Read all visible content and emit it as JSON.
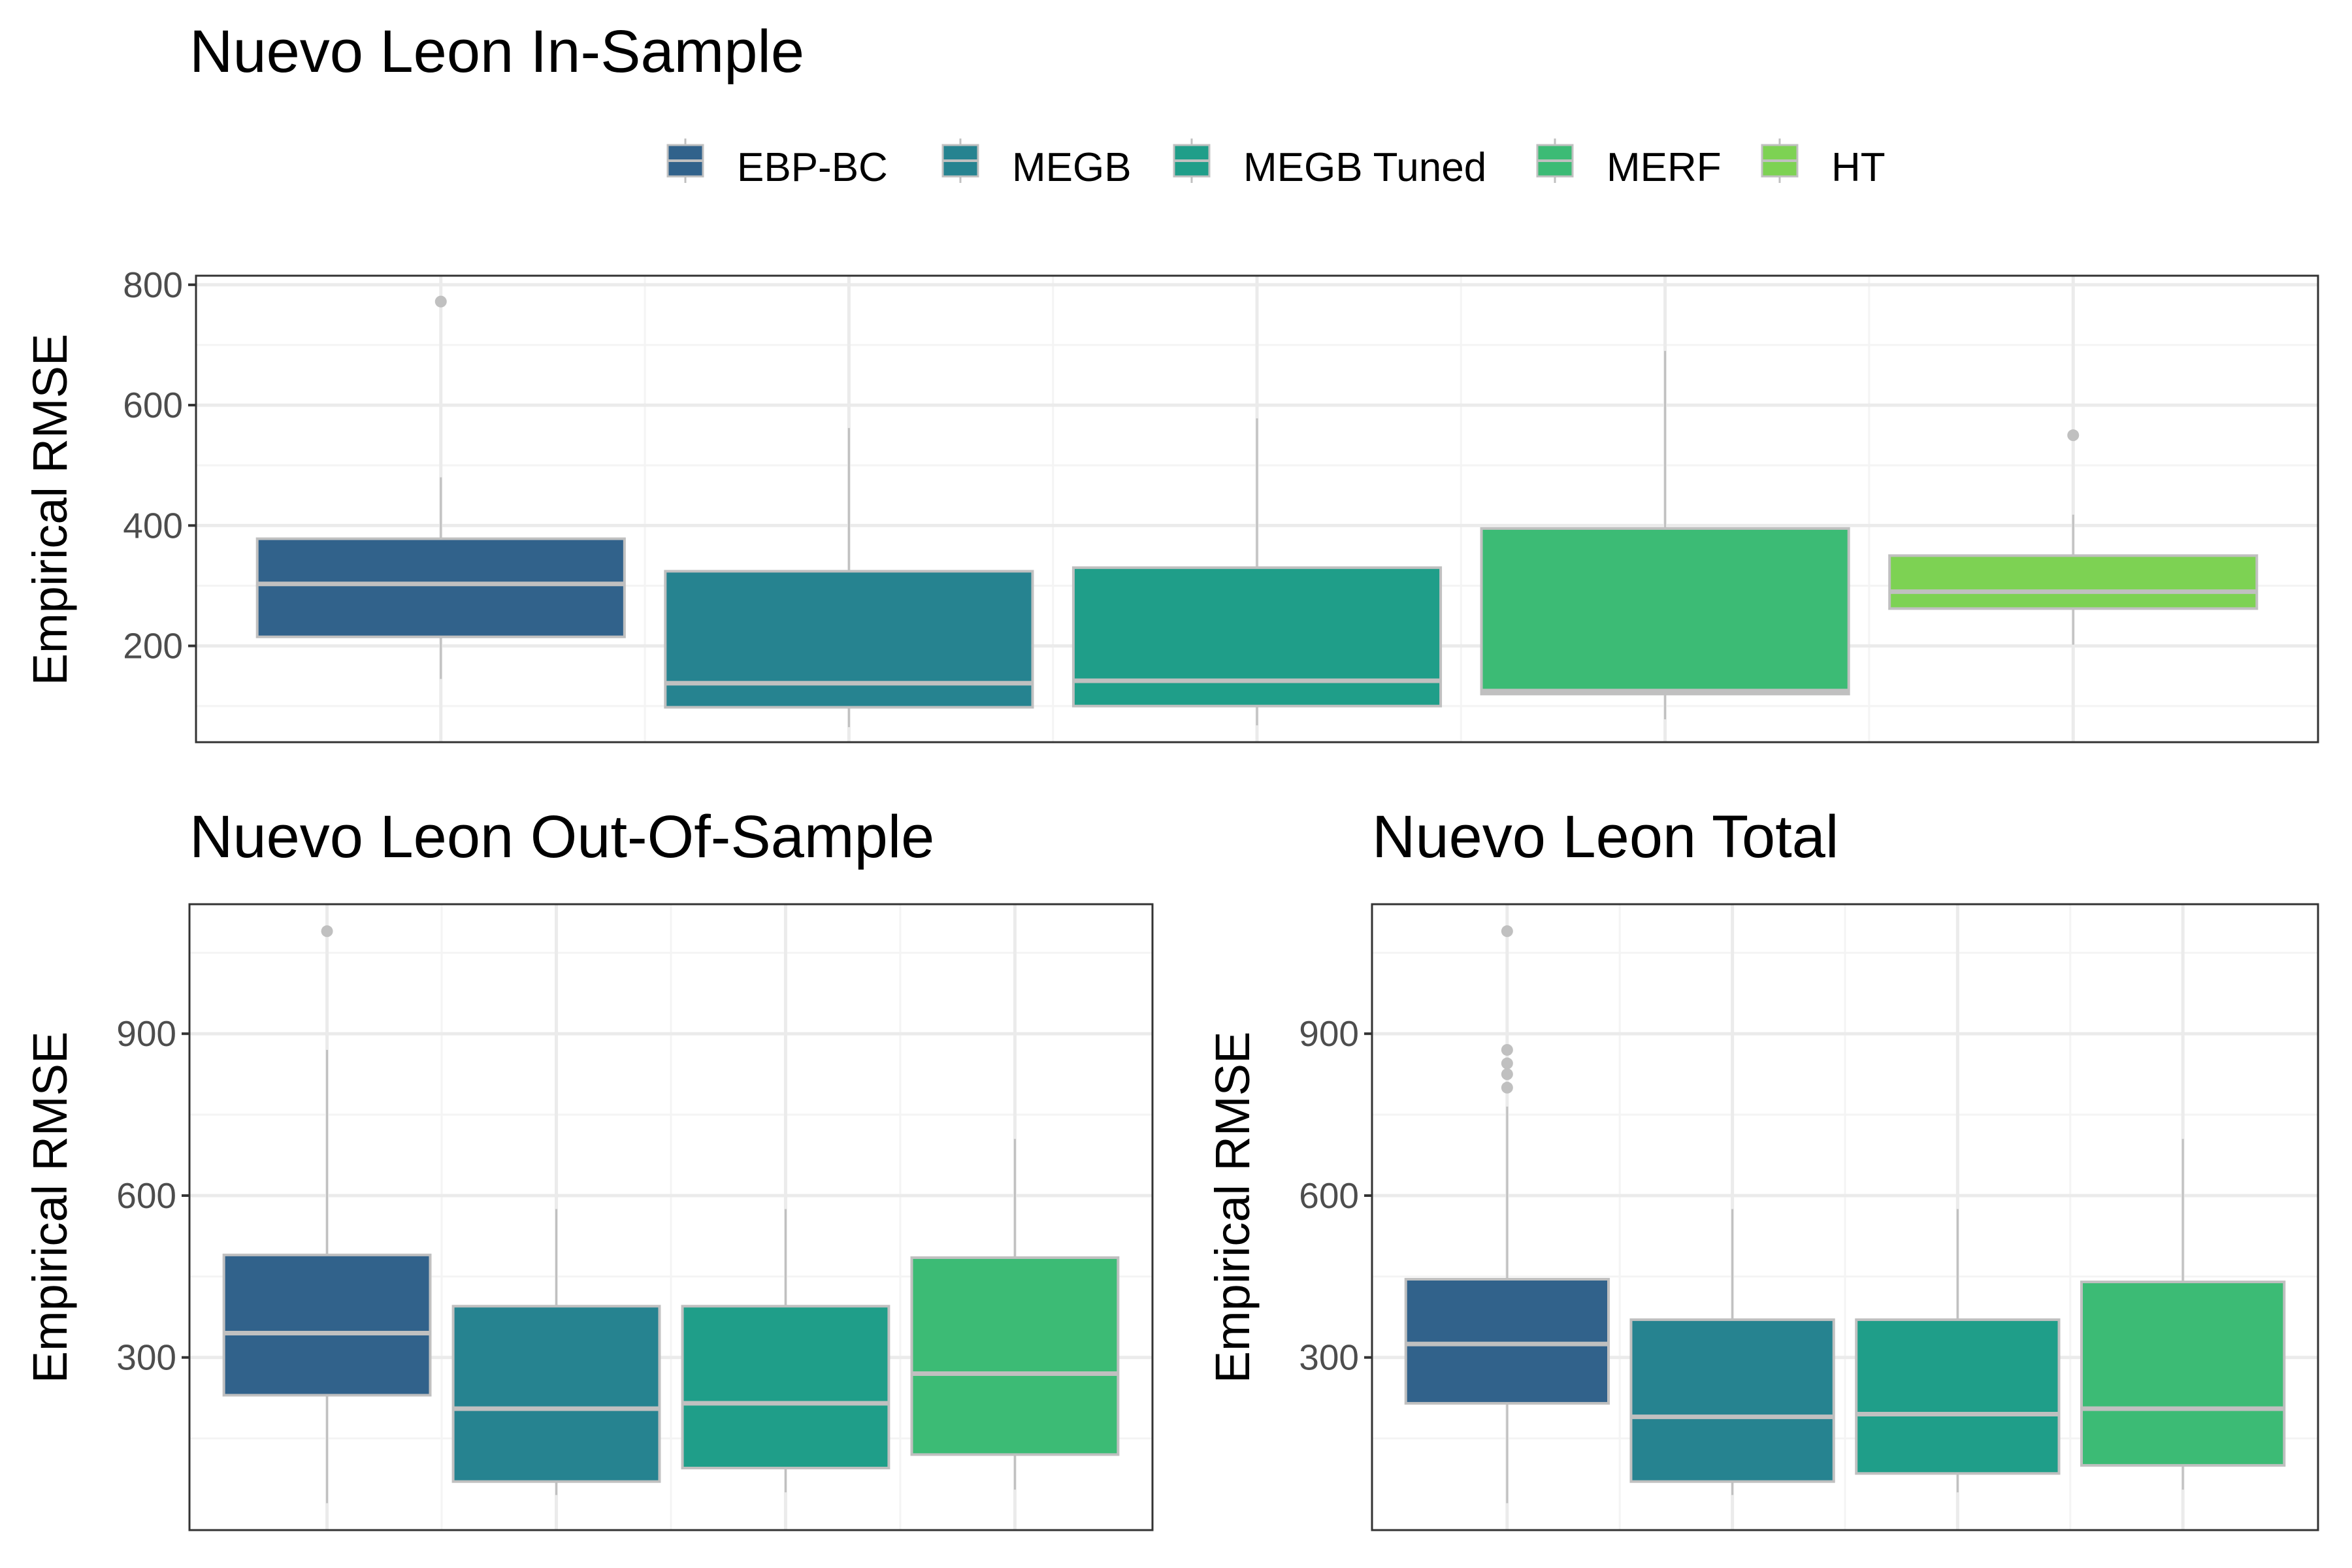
{
  "chart_data": [
    {
      "type": "box",
      "title": "Nuevo Leon In-Sample",
      "xlabel": "",
      "ylabel": "Empirical RMSE",
      "ylim": [
        40,
        815
      ],
      "yticks": [
        200,
        400,
        600,
        800
      ],
      "grid": true,
      "series": [
        {
          "name": "EBP-BC",
          "min": 145,
          "q1": 215,
          "median": 303,
          "q3": 378,
          "max": 480,
          "outliers": [
            772
          ]
        },
        {
          "name": "MEGB",
          "min": 65,
          "q1": 98,
          "median": 138,
          "q3": 324,
          "max": 562,
          "outliers": []
        },
        {
          "name": "MEGB Tuned",
          "min": 68,
          "q1": 100,
          "median": 142,
          "q3": 330,
          "max": 578,
          "outliers": []
        },
        {
          "name": "MERF",
          "min": 78,
          "q1": 120,
          "median": 125,
          "q3": 395,
          "max": 690,
          "outliers": []
        },
        {
          "name": "HT",
          "min": 202,
          "q1": 262,
          "median": 290,
          "q3": 350,
          "max": 418,
          "outliers": [
            550
          ]
        }
      ]
    },
    {
      "type": "box",
      "title": "Nuevo Leon Out-Of-Sample",
      "xlabel": "",
      "ylabel": "Empirical RMSE",
      "ylim": [
        -20,
        1140
      ],
      "yticks": [
        300,
        600,
        900
      ],
      "grid": true,
      "series": [
        {
          "name": "EBP-BC",
          "min": 30,
          "q1": 230,
          "median": 345,
          "q3": 490,
          "max": 870,
          "outliers": [
            1090
          ]
        },
        {
          "name": "MEGB",
          "min": 45,
          "q1": 70,
          "median": 205,
          "q3": 395,
          "max": 575,
          "outliers": []
        },
        {
          "name": "MEGB Tuned",
          "min": 50,
          "q1": 95,
          "median": 215,
          "q3": 395,
          "max": 575,
          "outliers": []
        },
        {
          "name": "MERF",
          "min": 55,
          "q1": 120,
          "median": 270,
          "q3": 485,
          "max": 705,
          "outliers": []
        }
      ]
    },
    {
      "type": "box",
      "title": "Nuevo Leon Total",
      "xlabel": "",
      "ylabel": "Empirical RMSE",
      "ylim": [
        -20,
        1140
      ],
      "yticks": [
        300,
        600,
        900
      ],
      "grid": true,
      "series": [
        {
          "name": "EBP-BC",
          "min": 30,
          "q1": 215,
          "median": 325,
          "q3": 445,
          "max": 765,
          "outliers": [
            800,
            825,
            845,
            870,
            1090
          ]
        },
        {
          "name": "MEGB",
          "min": 45,
          "q1": 70,
          "median": 190,
          "q3": 370,
          "max": 575,
          "outliers": []
        },
        {
          "name": "MEGB Tuned",
          "min": 50,
          "q1": 85,
          "median": 195,
          "q3": 370,
          "max": 575,
          "outliers": []
        },
        {
          "name": "MERF",
          "min": 55,
          "q1": 100,
          "median": 205,
          "q3": 440,
          "max": 705,
          "outliers": []
        }
      ]
    }
  ],
  "legend": {
    "position": "top",
    "items": [
      {
        "label": "EBP-BC",
        "color": "#31628b"
      },
      {
        "label": "MEGB",
        "color": "#268390"
      },
      {
        "label": "MEGB Tuned",
        "color": "#1f9e89"
      },
      {
        "label": "MERF",
        "color": "#3cbb75"
      },
      {
        "label": "HT",
        "color": "#7dd253"
      }
    ]
  },
  "colors": {
    "box_outline": "#c0c0c0",
    "grid_major": "#ebebeb",
    "grid_minor": "#f4f4f4",
    "panel_border": "#333333"
  }
}
